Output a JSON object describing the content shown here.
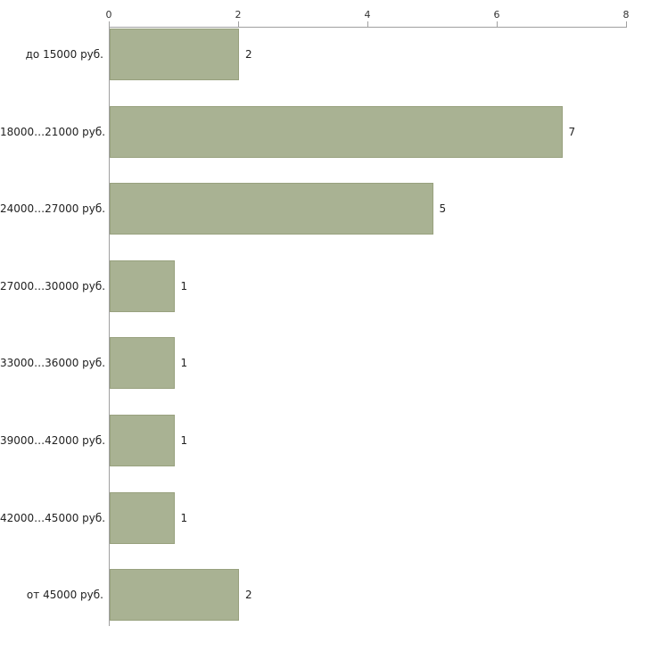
{
  "chart_data": {
    "type": "bar",
    "orientation": "horizontal",
    "title": "",
    "xlabel": "",
    "ylabel": "",
    "categories": [
      "до 15000 руб.",
      "18000…21000 руб.",
      "24000…27000 руб.",
      "27000…30000 руб.",
      "33000…36000 руб.",
      "39000…42000 руб.",
      "42000…45000 руб.",
      "от 45000 руб."
    ],
    "values": [
      2,
      7,
      5,
      1,
      1,
      1,
      1,
      2
    ],
    "value_labels": [
      "2",
      "7",
      "5",
      "1",
      "1",
      "1",
      "1",
      "2"
    ],
    "xlim": [
      0,
      8
    ],
    "x_ticks": [
      "0",
      "2",
      "4",
      "6",
      "8"
    ],
    "grid": false,
    "legend": false,
    "colors": {
      "bar_fill": "#a9b293",
      "bar_border": "#98a17e",
      "axis": "#a0a0a0",
      "text": "#222222"
    }
  }
}
